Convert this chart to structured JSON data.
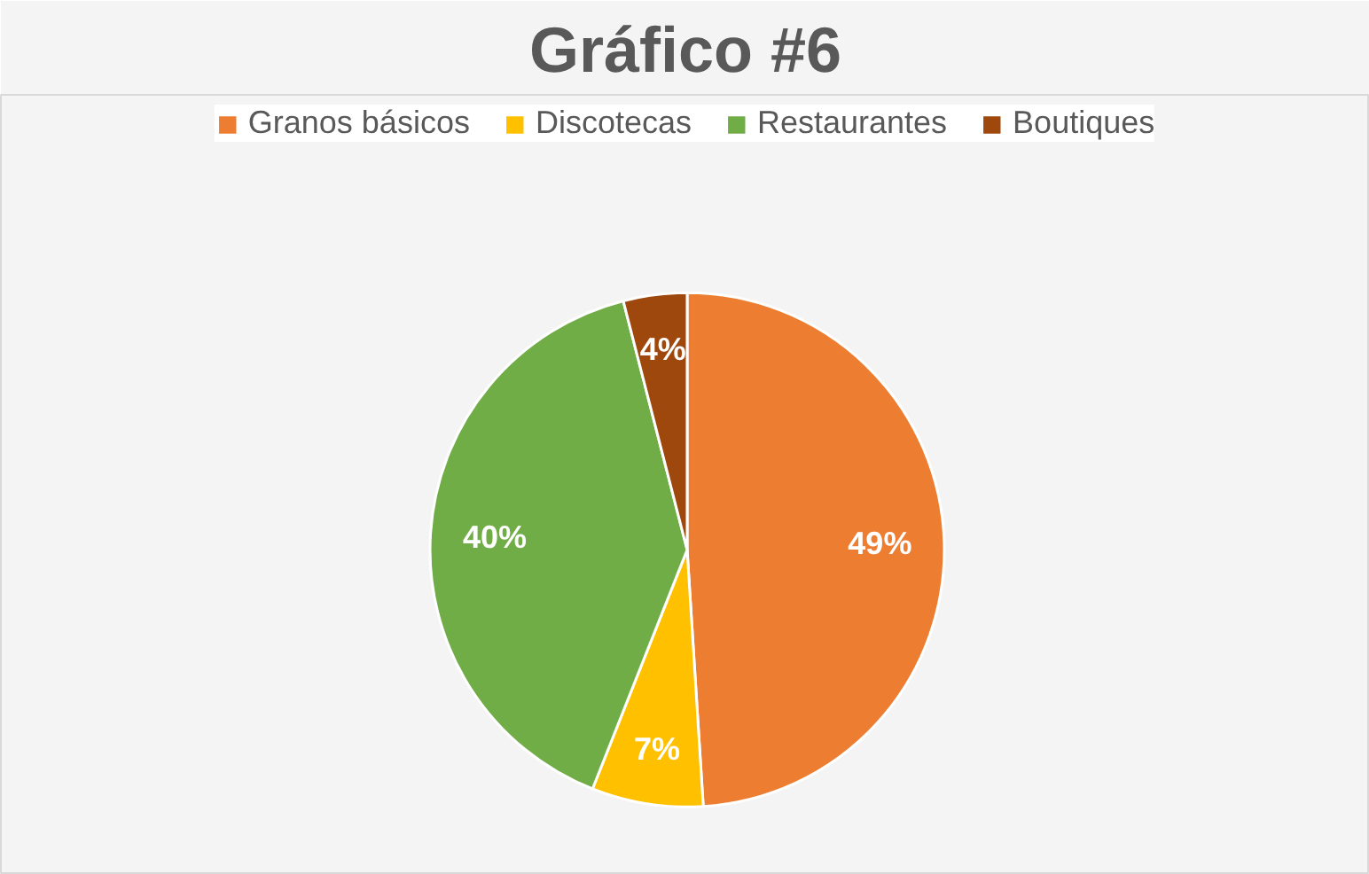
{
  "chart_data": {
    "type": "pie",
    "title": "Gráfico #6",
    "categories": [
      "Granos básicos",
      "Discotecas",
      "Restaurantes",
      "Boutiques"
    ],
    "values": [
      49,
      7,
      40,
      4
    ],
    "colors": [
      "#ed7d31",
      "#ffc000",
      "#70ad47",
      "#9e480e"
    ],
    "value_labels": [
      "49%",
      "7%",
      "40%",
      "4%"
    ],
    "legend": "top"
  }
}
